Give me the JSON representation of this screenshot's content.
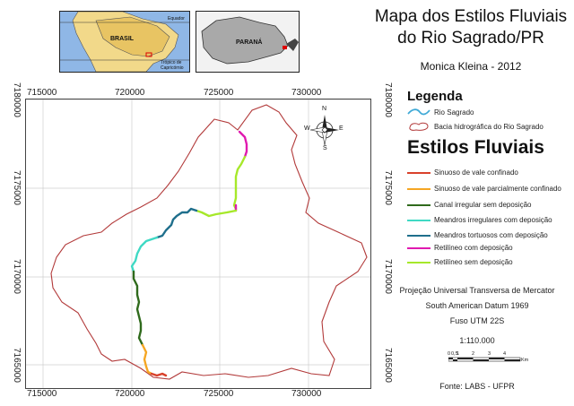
{
  "map": {
    "title_line1": "Mapa dos Estilos Fluviais",
    "title_line2": "do Rio Sagrado/PR",
    "author": "Monica Kleina - 2012",
    "x_ticks": [
      "715000",
      "720000",
      "725000",
      "730000"
    ],
    "y_ticks_left": [
      "7180000",
      "7175000",
      "7170000",
      "7165000"
    ],
    "y_ticks_right": [
      "7180000",
      "7175000",
      "7170000",
      "7165000"
    ]
  },
  "inset_south_america": {
    "country_label": "BRASIL",
    "equator_label": "Equador",
    "tropic_label_1": "Trópico de",
    "tropic_label_2": "Capricórnio"
  },
  "inset_parana": {
    "state_label": "PARANÁ"
  },
  "north_arrow": {
    "n": "N",
    "s": "S",
    "e": "E",
    "w": "W"
  },
  "legend": {
    "heading": "Legenda",
    "river": "Rio Sagrado",
    "basin": "Bacia hidrográfica do Rio Sagrado",
    "styles_heading": "Estilos Fluviais",
    "styles": [
      {
        "label": "Sinuoso de vale confinado",
        "color": "#d9412b"
      },
      {
        "label": "Sinuoso de vale parcialmente confinado",
        "color": "#f5a623"
      },
      {
        "label": "Canal irregular sem deposição",
        "color": "#2f6a1c"
      },
      {
        "label": "Meandros irregulares com deposição",
        "color": "#3fd9c4"
      },
      {
        "label": "Meandros tortuosos com deposição",
        "color": "#1f6f8c"
      },
      {
        "label": "Retilíneo com deposição",
        "color": "#e01ab0"
      },
      {
        "label": "Retilíneo sem deposição",
        "color": "#a6e82a"
      }
    ],
    "river_color": "#3fa9d6",
    "basin_color": "#b23a3a"
  },
  "footer": {
    "projection": "Projeção Universal Transversa de Mercator",
    "datum": "South American Datum 1969",
    "zone": "Fuso UTM 22S",
    "scale": "1:110.000",
    "scalebar_labels": [
      "0",
      "0,5",
      "1",
      "2",
      "3",
      "4"
    ],
    "scalebar_unit": "Km",
    "source": "Fonte: LABS - UFPR"
  }
}
